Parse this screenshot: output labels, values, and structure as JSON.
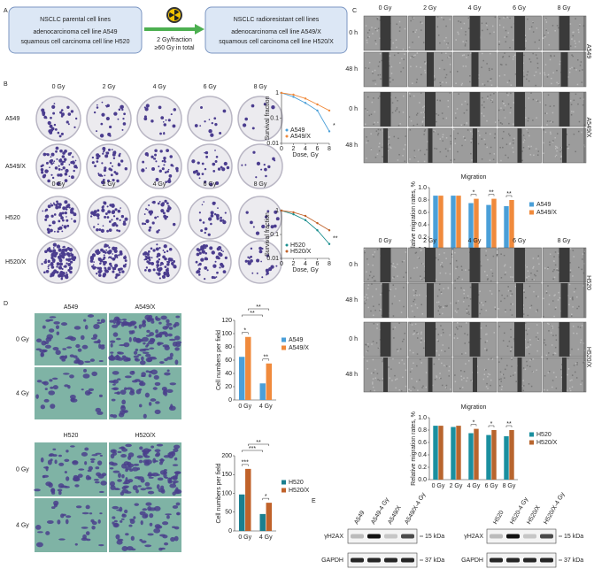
{
  "panel_a": {
    "label": "A",
    "parental": {
      "title": "NSCLC parental cell lines",
      "lines": [
        "adenocarcinoma cell line A549",
        "squamous cell carcinoma cell line H520"
      ]
    },
    "arrow_text": [
      "2 Gy/fraction",
      "≥60 Gy in total"
    ],
    "resistant": {
      "title": "NSCLC radioresistant cell lines",
      "lines": [
        "adenocarcinoma cell line A549/X",
        "squamous cell carcinoma cell line H520/X"
      ]
    }
  },
  "panel_b": {
    "label": "B",
    "doses": [
      "0 Gy",
      "2 Gy",
      "4 Gy",
      "6 Gy",
      "8 Gy"
    ],
    "groups": [
      {
        "rows": [
          "A549",
          "A549/X"
        ],
        "chart": {
          "type": "line",
          "ylabel": "Survival fraction",
          "xlabel": "Dose, Gy",
          "log_y": true,
          "x": [
            0,
            2,
            4,
            6,
            8
          ],
          "xlim": [
            0,
            8
          ],
          "xticks": [
            0,
            2,
            4,
            6,
            8
          ],
          "ylim": [
            0.01,
            1
          ],
          "yticks": [
            1,
            0.1,
            0.01
          ],
          "series": [
            {
              "name": "A549",
              "color": "#4a9fd8",
              "values": [
                1,
                0.7,
                0.4,
                0.2,
                0.03
              ]
            },
            {
              "name": "A549/X",
              "color": "#f08a3c",
              "values": [
                1,
                0.85,
                0.6,
                0.35,
                0.2
              ]
            }
          ],
          "annotations": [
            "*"
          ]
        }
      },
      {
        "rows": [
          "H520",
          "H520/X"
        ],
        "chart": {
          "type": "line",
          "ylabel": "Survival fraction",
          "xlabel": "Dose, Gy",
          "log_y": true,
          "x": [
            0,
            2,
            4,
            6,
            8
          ],
          "xlim": [
            0,
            8
          ],
          "xticks": [
            0,
            2,
            4,
            6,
            8
          ],
          "ylim": [
            0.01,
            1
          ],
          "yticks": [
            1,
            0.1,
            0.01
          ],
          "series": [
            {
              "name": "H520",
              "color": "#1a8f8f",
              "values": [
                1,
                0.7,
                0.4,
                0.15,
                0.04
              ]
            },
            {
              "name": "H520/X",
              "color": "#c0622a",
              "values": [
                1,
                0.85,
                0.6,
                0.3,
                0.15
              ]
            }
          ],
          "annotations": [
            "**"
          ]
        }
      }
    ]
  },
  "panel_c": {
    "label": "C",
    "doses": [
      "0 Gy",
      "2 Gy",
      "4 Gy",
      "6 Gy",
      "8 Gy"
    ],
    "times": [
      "0 h",
      "48 h"
    ],
    "groups": [
      {
        "cells": [
          "A549",
          "A549/X"
        ],
        "chart": {
          "type": "bar",
          "title": "Migration",
          "ylabel": "Relative migration rates, %",
          "categories": [
            "0 Gy",
            "2 Gy",
            "4 Gy",
            "6 Gy",
            "8 Gy"
          ],
          "ylim": [
            0,
            1
          ],
          "yticks": [
            {
              "value": 0,
              "label": "0.0"
            },
            {
              "value": 0.2,
              "label": "0.2"
            },
            {
              "value": 0.4,
              "label": "0.4"
            },
            {
              "value": 0.6,
              "label": "0.6"
            },
            {
              "value": 0.8,
              "label": "0.8"
            },
            {
              "value": 1,
              "label": "1.0"
            }
          ],
          "series": [
            {
              "name": "A549",
              "color": "#4a9fd8",
              "values": [
                0.87,
                0.87,
                0.75,
                0.72,
                0.7
              ]
            },
            {
              "name": "A549/X",
              "color": "#f08a3c",
              "values": [
                0.87,
                0.87,
                0.82,
                0.82,
                0.8
              ]
            }
          ],
          "annotations": [
            "*",
            "**",
            "**"
          ]
        }
      },
      {
        "cells": [
          "H520",
          "H520/X"
        ],
        "chart": {
          "type": "bar",
          "title": "Migration",
          "ylabel": "Relative migration rates, %",
          "categories": [
            "0 Gy",
            "2 Gy",
            "4 Gy",
            "6 Gy",
            "8 Gy"
          ],
          "ylim": [
            0,
            1
          ],
          "yticks": [
            {
              "value": 0,
              "label": "0.0"
            },
            {
              "value": 0.2,
              "label": "0.2"
            },
            {
              "value": 0.4,
              "label": "0.4"
            },
            {
              "value": 0.6,
              "label": "0.6"
            },
            {
              "value": 0.8,
              "label": "0.8"
            },
            {
              "value": 1,
              "label": "1.0"
            }
          ],
          "series": [
            {
              "name": "H520",
              "color": "#1a8f9f",
              "values": [
                0.87,
                0.85,
                0.75,
                0.72,
                0.7
              ]
            },
            {
              "name": "H520/X",
              "color": "#b8652e",
              "values": [
                0.87,
                0.87,
                0.82,
                0.8,
                0.8
              ]
            }
          ],
          "annotations": [
            "*",
            "*",
            "**"
          ]
        }
      }
    ]
  },
  "panel_d": {
    "label": "D",
    "doses": [
      "0 Gy",
      "4 Gy"
    ],
    "groups": [
      {
        "cells": [
          "A549",
          "A549/X"
        ],
        "chart": {
          "type": "bar",
          "ylabel": "Cell numbers per field",
          "categories": [
            "0 Gy",
            "4 Gy"
          ],
          "ylim": [
            0,
            120
          ],
          "yticks": [
            0,
            20,
            40,
            60,
            80,
            100,
            120
          ],
          "series": [
            {
              "name": "A549",
              "color": "#4a9fd8",
              "values": [
                65,
                25
              ]
            },
            {
              "name": "A549/X",
              "color": "#f08a3c",
              "values": [
                95,
                55
              ]
            }
          ],
          "annotations": [
            "*",
            "**",
            "**",
            "**"
          ]
        }
      },
      {
        "cells": [
          "H520",
          "H520/X"
        ],
        "chart": {
          "type": "bar",
          "ylabel": "Cell numbers per field",
          "categories": [
            "0 Gy",
            "4 Gy"
          ],
          "ylim": [
            0,
            200
          ],
          "yticks": [
            0,
            50,
            100,
            150,
            200
          ],
          "series": [
            {
              "name": "H520",
              "color": "#1a7f8f",
              "values": [
                97,
                45
              ]
            },
            {
              "name": "H520/X",
              "color": "#c0622a",
              "values": [
                165,
                75
              ]
            }
          ],
          "annotations": [
            "***",
            "*",
            "***",
            "**"
          ]
        }
      }
    ]
  },
  "panel_e": {
    "label": "E",
    "blots": [
      {
        "lanes": [
          "A549",
          "A549-4 Gy",
          "A549/X",
          "A549/X-4 Gy"
        ],
        "rows": [
          {
            "label": "γH2AX",
            "size": "15 kDa"
          },
          {
            "label": "GAPDH",
            "size": "37 kDa"
          }
        ]
      },
      {
        "lanes": [
          "H520",
          "H520-4 Gy",
          "H520/X",
          "H520/X-4 Gy"
        ],
        "rows": [
          {
            "label": "γH2AX",
            "size": "15 kDa"
          },
          {
            "label": "GAPDH",
            "size": "37 kDa"
          }
        ]
      }
    ]
  }
}
